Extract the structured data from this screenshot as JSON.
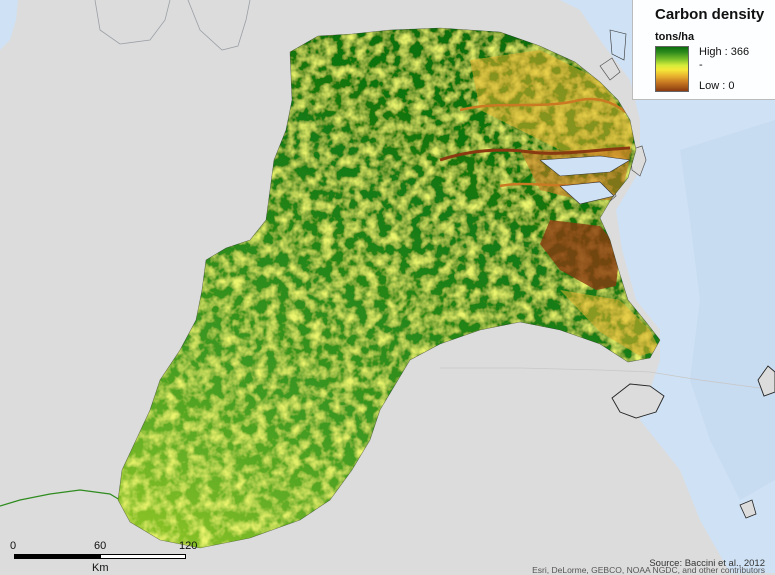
{
  "map": {
    "ocean_color": "#cfe1f4",
    "land_color": "#dcdcdc",
    "forest_colors": {
      "high": "#0a6e0a",
      "mid_high": "#2e8b1e",
      "mid": "#7cc02a",
      "mid_low": "#f6e838",
      "low_mid": "#e8b22e",
      "low": "#8a3a10"
    }
  },
  "legend": {
    "title": "Carbon density",
    "units": "tons/ha",
    "high_label": "High : 366",
    "tick_label": "-",
    "low_label": "Low : 0"
  },
  "scalebar": {
    "labels": [
      "0",
      "60",
      "120"
    ],
    "unit": "Km"
  },
  "attribution": {
    "source": "Source: Baccini et al., 2012",
    "credits": "Esri, DeLorme, GEBCO, NOAA NGDC, and other contributors"
  }
}
